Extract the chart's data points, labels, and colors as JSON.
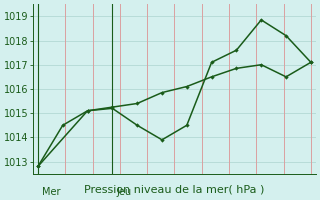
{
  "line1_x": [
    0,
    1,
    2,
    3,
    4,
    5,
    6,
    7,
    8,
    9,
    10,
    11
  ],
  "line1_y": [
    1012.8,
    1014.5,
    1015.1,
    1015.2,
    1014.5,
    1013.9,
    1014.5,
    1017.1,
    1017.6,
    1018.85,
    1018.2,
    1017.1
  ],
  "line2_x": [
    0,
    2,
    3,
    4,
    5,
    6,
    7,
    8,
    9,
    10,
    11
  ],
  "line2_y": [
    1012.8,
    1015.1,
    1015.25,
    1015.4,
    1015.85,
    1016.1,
    1016.5,
    1016.85,
    1017.0,
    1016.5,
    1017.1
  ],
  "ylim": [
    1012.5,
    1019.5
  ],
  "yticks": [
    1013,
    1014,
    1015,
    1016,
    1017,
    1018,
    1019
  ],
  "xlabel": "Pression niveau de la mer( hPa )",
  "line_color": "#1a5c1a",
  "bg_color": "#d4f0ee",
  "grid_color_v": "#dba0a0",
  "grid_color_h": "#b8dcd8",
  "vline_x": [
    0,
    3
  ],
  "vline_labels": [
    "Mer",
    "Jeu"
  ],
  "tick_fontsize": 7,
  "xlabel_fontsize": 8,
  "num_vgrid": 11,
  "xlim": [
    -0.2,
    11.2
  ]
}
